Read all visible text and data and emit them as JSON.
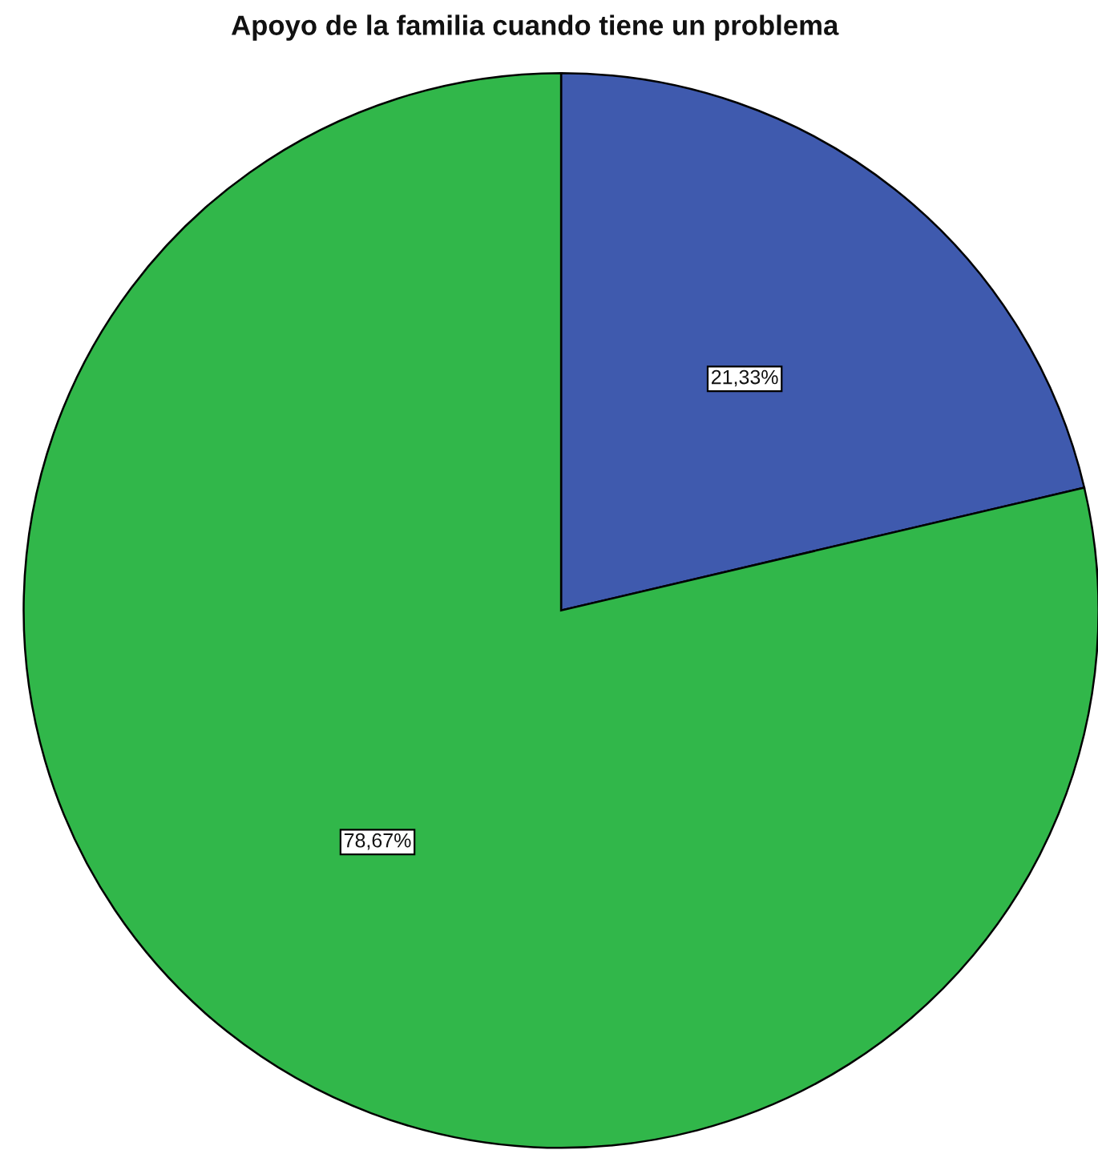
{
  "chart_data": {
    "type": "pie",
    "title": "Apoyo de la familia cuando tiene un problema",
    "categories": [
      null,
      null
    ],
    "values": [
      21.33,
      78.67
    ],
    "colors": [
      "#3f5aae",
      "#31b74a"
    ],
    "value_labels": [
      "21,33%",
      "78,67%"
    ]
  }
}
